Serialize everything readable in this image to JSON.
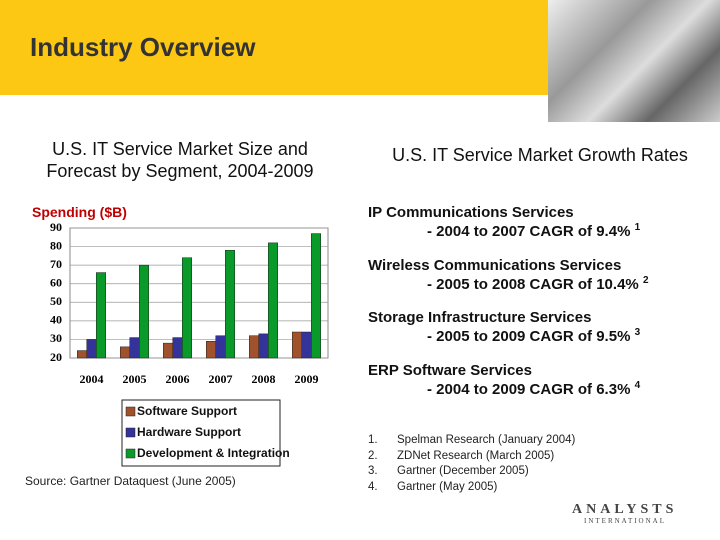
{
  "header": {
    "title": "Industry Overview"
  },
  "chart_data": {
    "type": "bar",
    "title": "U.S. IT Service Market Size and Forecast by Segment, 2004-2009",
    "y_label": "Spending ($B)",
    "categories": [
      "2004",
      "2005",
      "2006",
      "2007",
      "2008",
      "2009"
    ],
    "series": [
      {
        "name": "Software Support",
        "color": "#a0522d",
        "values": [
          24,
          26,
          28,
          29,
          32,
          34
        ]
      },
      {
        "name": "Hardware Support",
        "color": "#333399",
        "values": [
          30,
          31,
          31,
          32,
          33,
          34
        ]
      },
      {
        "name": "Development & Integration",
        "color": "#0a9a2a",
        "values": [
          66,
          70,
          74,
          78,
          82,
          87
        ]
      }
    ],
    "ylim": [
      20,
      90
    ],
    "yticks": [
      20,
      30,
      40,
      50,
      60,
      70,
      80,
      90
    ],
    "grid": true,
    "source": "Source: Gartner Dataquest (June 2005)"
  },
  "growth": {
    "title": "U.S. IT Service Market Growth Rates",
    "items": [
      {
        "heading": "IP Communications Services",
        "detail": "-  2004 to 2007 CAGR of 9.4%",
        "note": "1"
      },
      {
        "heading": "Wireless Communications Services",
        "detail": "-  2005 to 2008 CAGR of 10.4%",
        "note": "2"
      },
      {
        "heading": "Storage Infrastructure Services",
        "detail": "-  2005 to 2009 CAGR of 9.5%",
        "note": "3"
      },
      {
        "heading": "ERP Software Services",
        "detail": "-  2004 to 2009 CAGR of 6.3%",
        "note": "4"
      }
    ],
    "footnotes": [
      {
        "number": "1.",
        "text": "Spelman Research (January 2004)"
      },
      {
        "number": "2.",
        "text": "ZDNet Research (March 2005)"
      },
      {
        "number": "3.",
        "text": "Gartner (December 2005)"
      },
      {
        "number": "4.",
        "text": "Gartner (May 2005)"
      }
    ]
  },
  "logo": {
    "name": "ANALYSTS",
    "sub": "INTERNATIONAL"
  }
}
